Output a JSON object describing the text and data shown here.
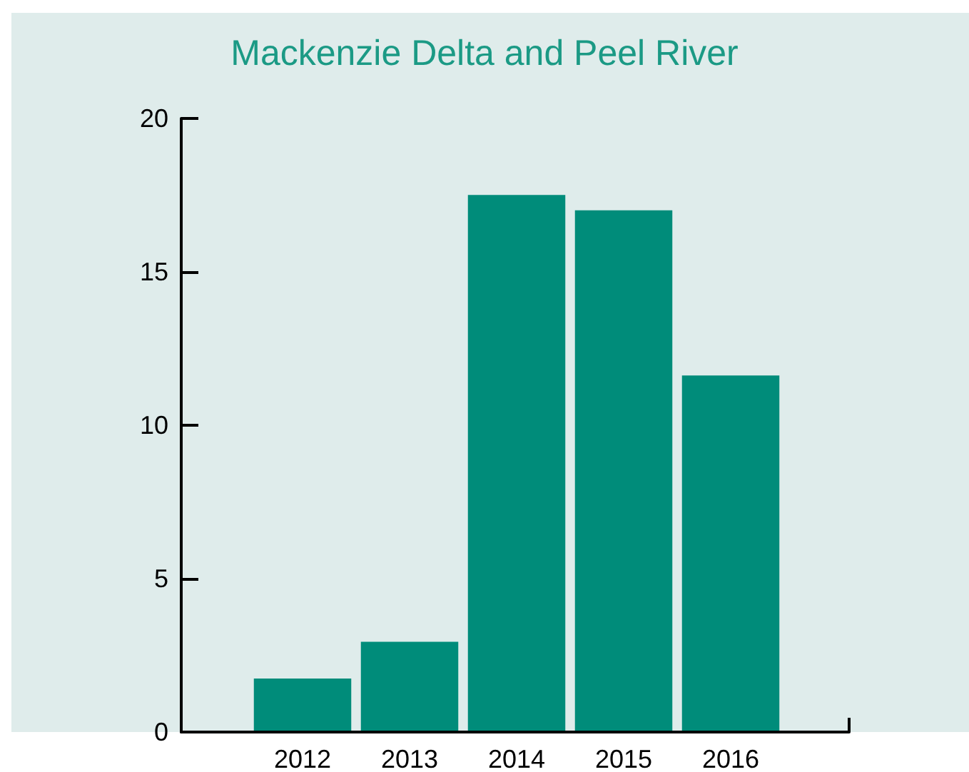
{
  "chart_data": {
    "type": "bar",
    "title": "Mackenzie Delta and Peel River",
    "categories": [
      "2012",
      "2013",
      "2014",
      "2015",
      "2016"
    ],
    "values": [
      1.7,
      2.9,
      17.5,
      17.0,
      11.6
    ],
    "color": "#008c7a",
    "ylim": [
      0,
      20
    ],
    "yticks": [
      0,
      5,
      10,
      15,
      20
    ],
    "grid": false
  }
}
